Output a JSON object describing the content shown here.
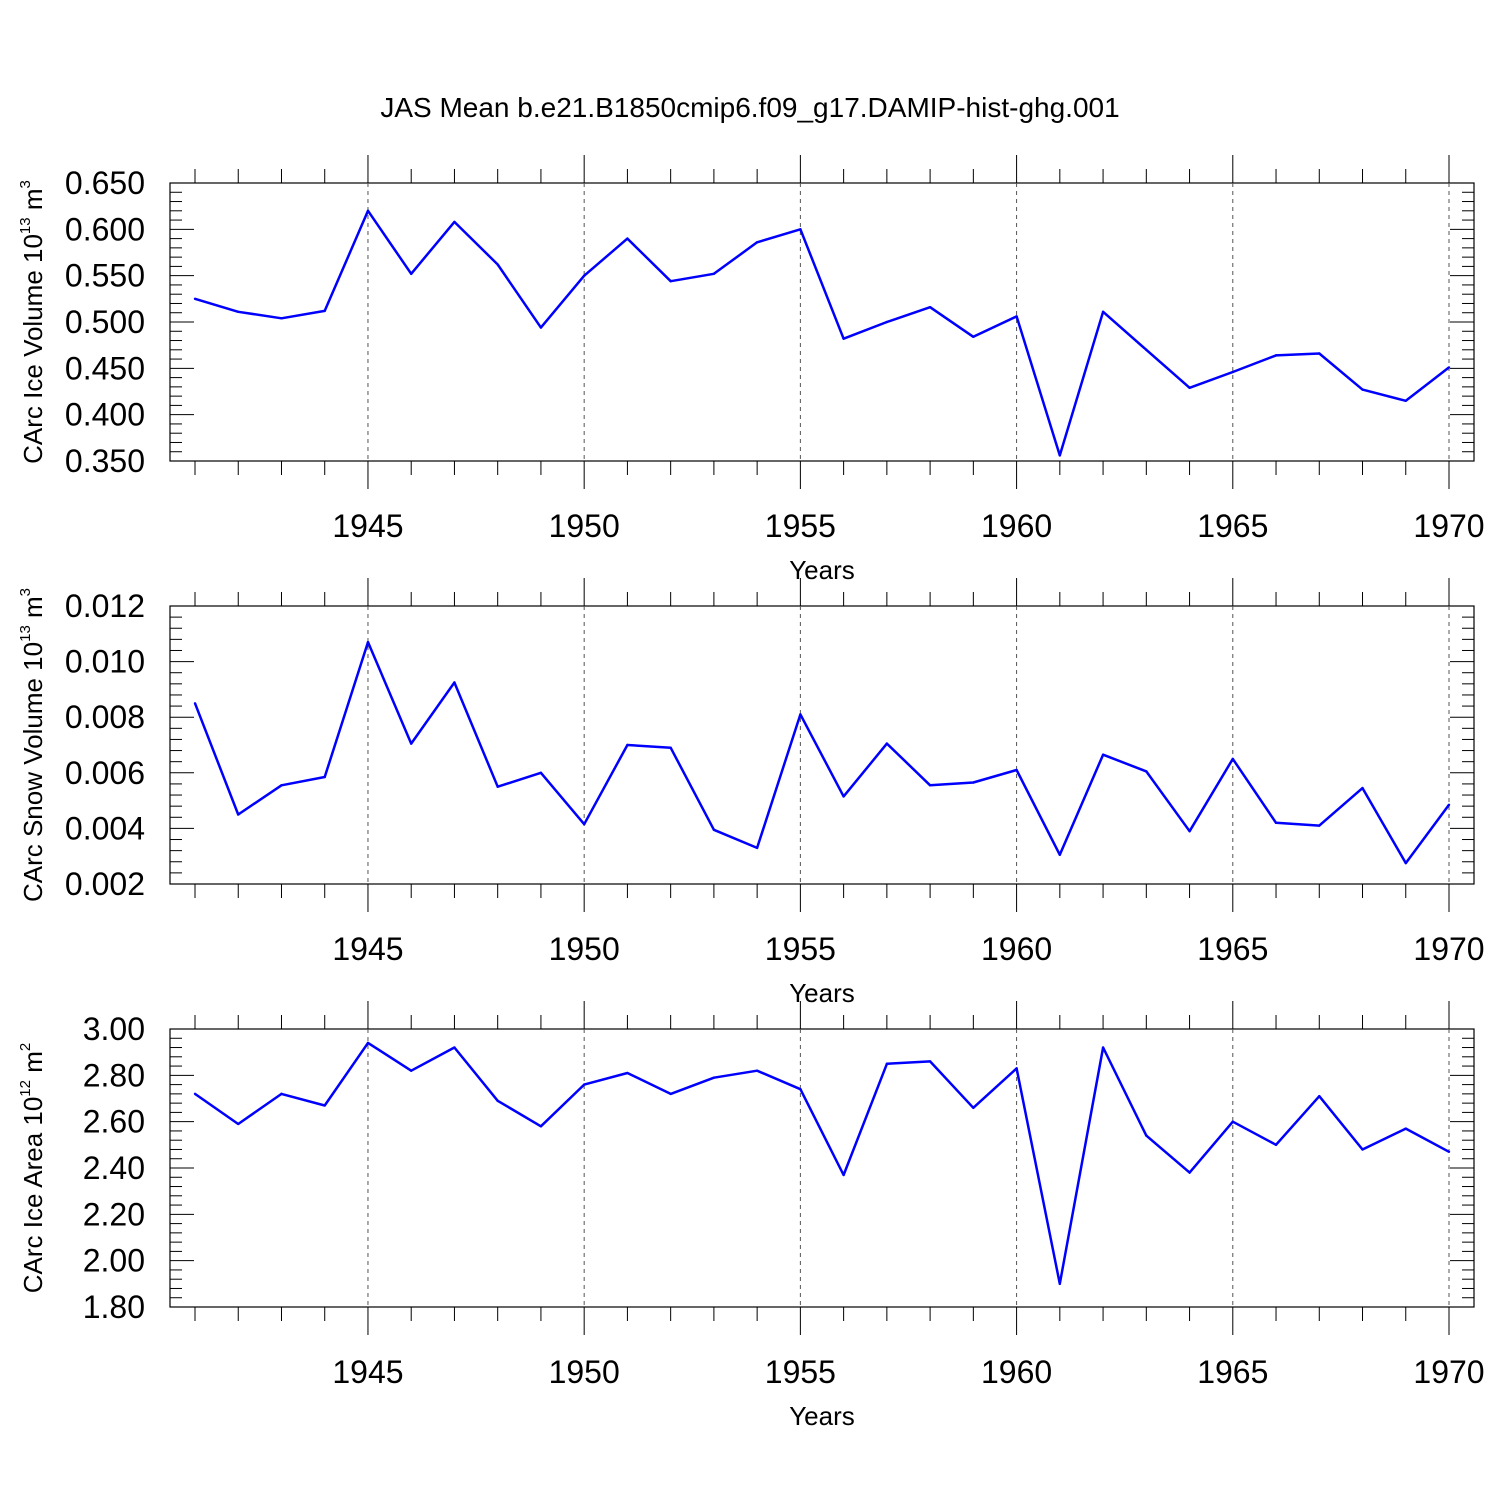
{
  "title": "JAS Mean b.e21.B1850cmip6.f09_g17.DAMIP-hist-ghg.001",
  "line_color": "#0000ff",
  "chart_data": [
    {
      "type": "line",
      "ylabel": {
        "base": "CArc Ice Volume 10",
        "exp": "13",
        "unit": " m",
        "unit_exp": "3"
      },
      "xlabel": "Years",
      "x": [
        1941,
        1942,
        1943,
        1944,
        1945,
        1946,
        1947,
        1948,
        1949,
        1950,
        1951,
        1952,
        1953,
        1954,
        1955,
        1956,
        1957,
        1958,
        1959,
        1960,
        1961,
        1962,
        1963,
        1964,
        1965,
        1966,
        1967,
        1968,
        1969,
        1970
      ],
      "y": [
        0.525,
        0.511,
        0.504,
        0.512,
        0.62,
        0.552,
        0.608,
        0.562,
        0.494,
        0.55,
        0.59,
        0.544,
        0.552,
        0.586,
        0.6,
        0.482,
        0.5,
        0.516,
        0.484,
        0.506,
        0.356,
        0.511,
        0.47,
        0.429,
        0.446,
        0.464,
        0.466,
        0.427,
        0.415,
        0.451
      ],
      "xlim": [
        1941,
        1970
      ],
      "ylim": [
        0.35,
        0.65
      ],
      "xticks": [
        "1945",
        "1950",
        "1955",
        "1960",
        "1965",
        "1970"
      ],
      "yticks": [
        "0.350",
        "0.400",
        "0.450",
        "0.500",
        "0.550",
        "0.600",
        "0.650"
      ],
      "grid": "vertical dashed at major x ticks"
    },
    {
      "type": "line",
      "ylabel": {
        "base": "CArc Snow Volume 10",
        "exp": "13",
        "unit": " m",
        "unit_exp": "3"
      },
      "xlabel": "Years",
      "x": [
        1941,
        1942,
        1943,
        1944,
        1945,
        1946,
        1947,
        1948,
        1949,
        1950,
        1951,
        1952,
        1953,
        1954,
        1955,
        1956,
        1957,
        1958,
        1959,
        1960,
        1961,
        1962,
        1963,
        1964,
        1965,
        1966,
        1967,
        1968,
        1969,
        1970
      ],
      "y": [
        0.0085,
        0.0045,
        0.00555,
        0.00585,
        0.0107,
        0.00705,
        0.00925,
        0.0055,
        0.006,
        0.00415,
        0.007,
        0.0069,
        0.00395,
        0.0033,
        0.0081,
        0.00515,
        0.00705,
        0.00555,
        0.00565,
        0.0061,
        0.00305,
        0.00665,
        0.00605,
        0.0039,
        0.0065,
        0.0042,
        0.0041,
        0.00545,
        0.00275,
        0.00485
      ],
      "xlim": [
        1941,
        1970
      ],
      "ylim": [
        0.002,
        0.012
      ],
      "xticks": [
        "1945",
        "1950",
        "1955",
        "1960",
        "1965",
        "1970"
      ],
      "yticks": [
        "0.002",
        "0.004",
        "0.006",
        "0.008",
        "0.010",
        "0.012"
      ],
      "grid": "vertical dashed at major x ticks"
    },
    {
      "type": "line",
      "ylabel": {
        "base": "CArc Ice Area 10",
        "exp": "12",
        "unit": " m",
        "unit_exp": "2"
      },
      "xlabel": "Years",
      "x": [
        1941,
        1942,
        1943,
        1944,
        1945,
        1946,
        1947,
        1948,
        1949,
        1950,
        1951,
        1952,
        1953,
        1954,
        1955,
        1956,
        1957,
        1958,
        1959,
        1960,
        1961,
        1962,
        1963,
        1964,
        1965,
        1966,
        1967,
        1968,
        1969,
        1970
      ],
      "y": [
        2.72,
        2.59,
        2.72,
        2.67,
        2.94,
        2.82,
        2.92,
        2.69,
        2.58,
        2.76,
        2.81,
        2.72,
        2.79,
        2.82,
        2.74,
        2.37,
        2.85,
        2.86,
        2.66,
        2.83,
        1.9,
        2.92,
        2.54,
        2.38,
        2.6,
        2.5,
        2.71,
        2.48,
        2.57,
        2.47
      ],
      "xlim": [
        1941,
        1970
      ],
      "ylim": [
        1.8,
        3.0
      ],
      "xticks": [
        "1945",
        "1950",
        "1955",
        "1960",
        "1965",
        "1970"
      ],
      "yticks": [
        "1.80",
        "2.00",
        "2.20",
        "2.40",
        "2.60",
        "2.80",
        "3.00"
      ],
      "grid": "vertical dashed at major x ticks"
    }
  ]
}
